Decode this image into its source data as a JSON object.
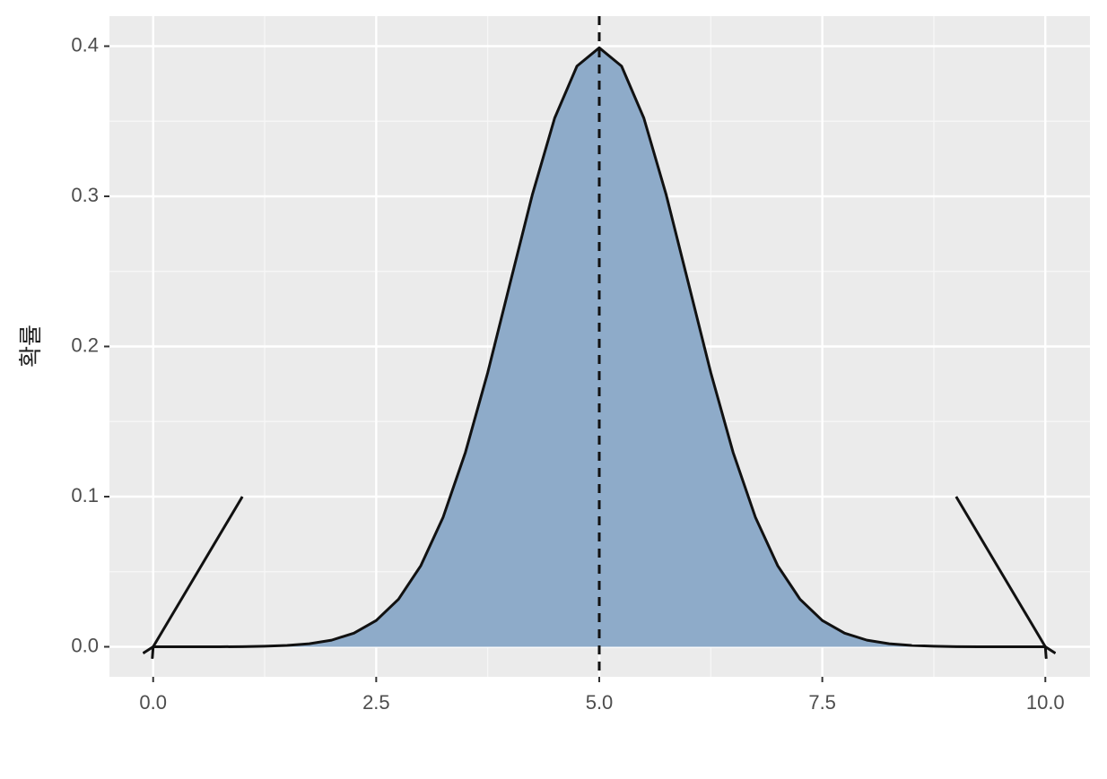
{
  "chart_data": {
    "type": "area",
    "y_label": "확률",
    "x": [
      0,
      0.25,
      0.5,
      0.75,
      1,
      1.25,
      1.5,
      1.75,
      2,
      2.25,
      2.5,
      2.75,
      3,
      3.25,
      3.5,
      3.75,
      4,
      4.25,
      4.5,
      4.75,
      5,
      5.25,
      5.5,
      5.75,
      6,
      6.25,
      6.5,
      6.75,
      7,
      7.25,
      7.5,
      7.75,
      8,
      8.25,
      8.5,
      8.75,
      9,
      9.25,
      9.5,
      9.75,
      10
    ],
    "values": [
      0,
      0,
      0,
      0,
      0.0001,
      0.0004,
      0.0009,
      0.002,
      0.0044,
      0.0091,
      0.0175,
      0.0317,
      0.054,
      0.0863,
      0.1295,
      0.1826,
      0.242,
      0.3011,
      0.3521,
      0.3867,
      0.3989,
      0.3867,
      0.3521,
      0.3011,
      0.242,
      0.1826,
      0.1295,
      0.0863,
      0.054,
      0.0317,
      0.0175,
      0.0091,
      0.0044,
      0.002,
      0.0009,
      0.0004,
      0.0001,
      0,
      0,
      0,
      0
    ],
    "color": "#8eabc9",
    "line_color": "#111111",
    "xlim": [
      -0.49,
      10.5
    ],
    "ylim": [
      -0.02,
      0.42
    ],
    "xticks": [
      {
        "value": 0,
        "label": "0.0"
      },
      2.5,
      {
        "value": 5,
        "label": "5.0"
      },
      7.5,
      {
        "value": 10,
        "label": "10.0"
      }
    ],
    "yticks": [
      {
        "value": 0,
        "label": "0.0"
      },
      0.1,
      0.2,
      0.3,
      0.4
    ],
    "grid": true,
    "vline": {
      "x": 5
    },
    "arrows": [
      {
        "x": 1,
        "y": 0.1,
        "xend": 0,
        "yend": 0
      },
      {
        "x": 9,
        "y": 0.1,
        "xend": 10,
        "yend": 0
      }
    ]
  }
}
